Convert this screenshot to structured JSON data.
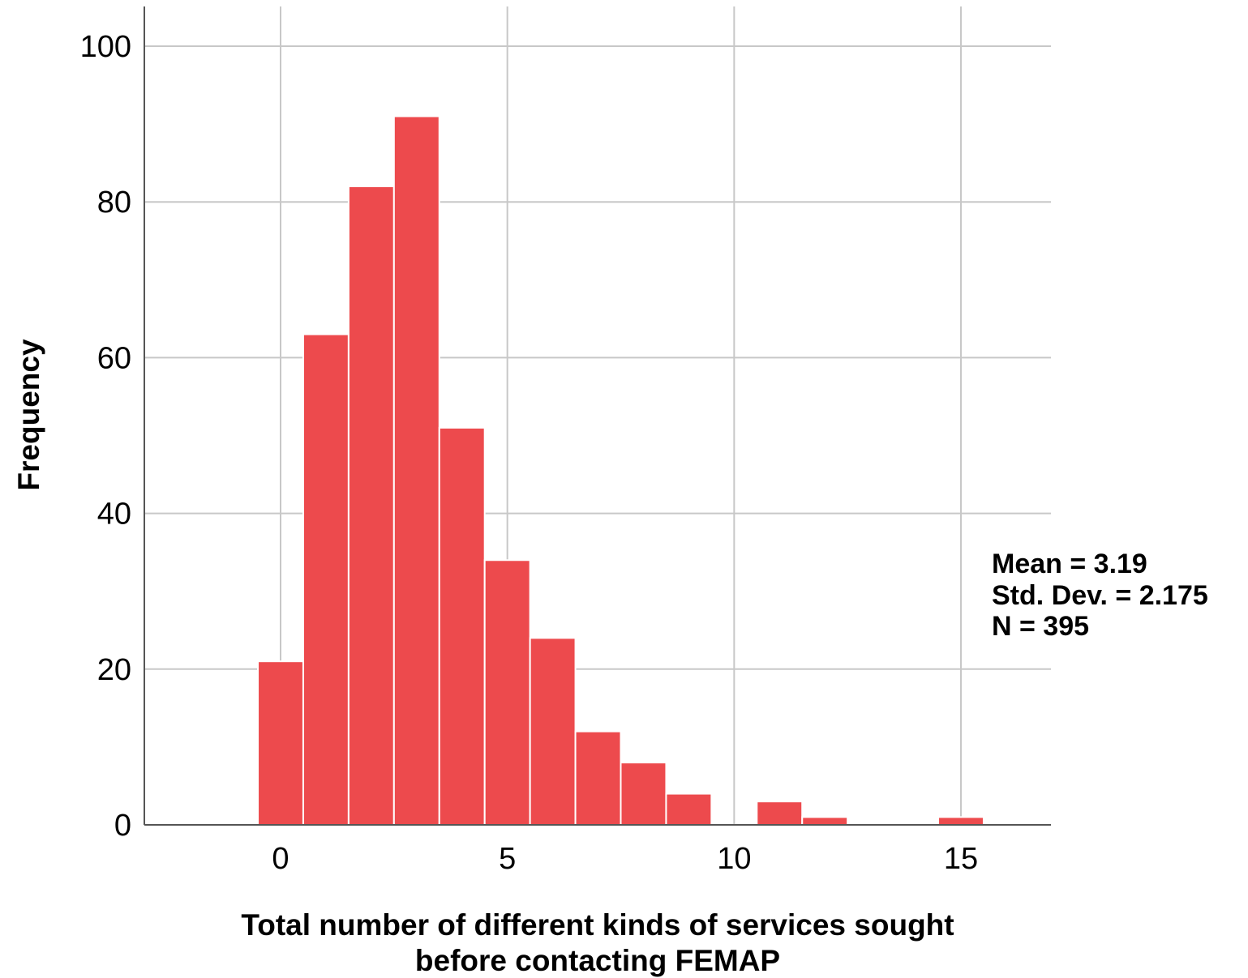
{
  "chart_data": {
    "type": "bar",
    "title": "",
    "xlabel": "Total number of different kinds of services sought before contacting FEMAP",
    "xlabel_lines": [
      "Total number of different kinds of services sought",
      "before contacting FEMAP"
    ],
    "ylabel": "Frequency",
    "x": [
      0,
      1,
      2,
      3,
      4,
      5,
      6,
      7,
      8,
      9,
      10,
      11,
      12,
      13,
      14,
      15
    ],
    "values": [
      21,
      63,
      82,
      91,
      51,
      34,
      24,
      12,
      8,
      4,
      0,
      3,
      1,
      0,
      0,
      1
    ],
    "xlim": [
      -3,
      17
    ],
    "ylim": [
      0,
      105
    ],
    "x_ticks": [
      0,
      5,
      10,
      15
    ],
    "x_tick_labels": [
      "0",
      "5",
      "10",
      "15"
    ],
    "y_ticks": [
      0,
      20,
      40,
      60,
      80,
      100
    ],
    "y_tick_labels": [
      "0",
      "20",
      "40",
      "60",
      "80",
      "100"
    ],
    "grid": true,
    "bar_color": "#ed4a4d",
    "stats": {
      "mean": "Mean = 3.19",
      "std_dev": "Std. Dev. = 2.175",
      "n": "N = 395"
    }
  }
}
